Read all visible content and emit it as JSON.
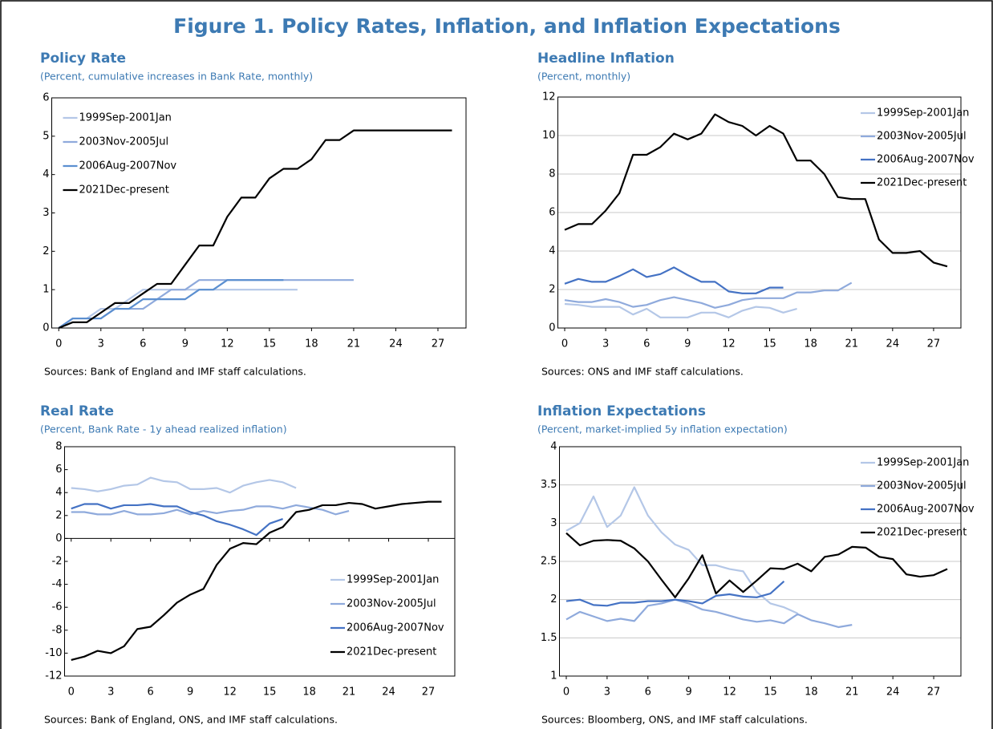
{
  "title": "Figure 1. Policy Rates, Inflation, and Inflation Expectations",
  "chart_data": [
    {
      "type": "line",
      "title": "Policy Rate",
      "subtitle": "(Percent, cumulative increases in Bank Rate, monthly)",
      "source": "Sources: Bank of England and IMF staff calculations.",
      "x": [
        0,
        1,
        2,
        3,
        4,
        5,
        6,
        7,
        8,
        9,
        10,
        11,
        12,
        13,
        14,
        15,
        16,
        17,
        18,
        19,
        20,
        21,
        22,
        23,
        24,
        25,
        26,
        27,
        28
      ],
      "xlim": [
        -0.5,
        29
      ],
      "xticks": [
        0,
        3,
        6,
        9,
        12,
        15,
        18,
        21,
        24,
        27
      ],
      "ylim": [
        0,
        6
      ],
      "yticks": [
        0,
        1,
        2,
        3,
        4,
        5,
        6
      ],
      "grid": false,
      "legend": "upper left",
      "series": [
        {
          "name": "1999Sep-2001Jan",
          "color": "#b4c7e7",
          "values": [
            0,
            0.25,
            0.25,
            0.5,
            0.5,
            0.75,
            1,
            1,
            1,
            1,
            1,
            1,
            1,
            1,
            1,
            1,
            1,
            1,
            null,
            null,
            null,
            null,
            null,
            null,
            null,
            null,
            null,
            null,
            null
          ]
        },
        {
          "name": "2003Nov-2005Jul",
          "color": "#8faadc",
          "values": [
            0,
            0.25,
            0.25,
            0.25,
            0.5,
            0.5,
            0.5,
            0.75,
            1,
            1,
            1.25,
            1.25,
            1.25,
            1.25,
            1.25,
            1.25,
            1.25,
            1.25,
            1.25,
            1.25,
            1.25,
            1.25,
            null,
            null,
            null,
            null,
            null,
            null,
            null
          ]
        },
        {
          "name": "2006Aug-2007Nov",
          "color": "#5b8fd0",
          "values": [
            0,
            0.25,
            0.25,
            0.25,
            0.5,
            0.5,
            0.75,
            0.75,
            0.75,
            0.75,
            1,
            1,
            1.25,
            1.25,
            1.25,
            1.25,
            1.25,
            null,
            null,
            null,
            null,
            null,
            null,
            null,
            null,
            null,
            null,
            null,
            null
          ]
        },
        {
          "name": "2021Dec-present",
          "color": "#000000",
          "values": [
            0,
            0.15,
            0.15,
            0.4,
            0.65,
            0.65,
            0.9,
            1.15,
            1.15,
            1.65,
            2.15,
            2.15,
            2.9,
            3.4,
            3.4,
            3.9,
            4.15,
            4.15,
            4.4,
            4.9,
            4.9,
            5.15,
            5.15,
            5.15,
            5.15,
            5.15,
            5.15,
            5.15,
            5.15
          ]
        }
      ]
    },
    {
      "type": "line",
      "title": "Headline Inflation",
      "subtitle": "(Percent, monthly)",
      "source": "Sources: ONS and IMF staff calculations.",
      "x": [
        0,
        1,
        2,
        3,
        4,
        5,
        6,
        7,
        8,
        9,
        10,
        11,
        12,
        13,
        14,
        15,
        16,
        17,
        18,
        19,
        20,
        21,
        22,
        23,
        24,
        25,
        26,
        27,
        28
      ],
      "xlim": [
        -0.5,
        29
      ],
      "xticks": [
        0,
        3,
        6,
        9,
        12,
        15,
        18,
        21,
        24,
        27
      ],
      "ylim": [
        0,
        12
      ],
      "yticks": [
        0,
        2,
        4,
        6,
        8,
        10,
        12
      ],
      "grid": true,
      "legend": "upper right",
      "series": [
        {
          "name": "1999Sep-2001Jan",
          "color": "#b4c7e7",
          "values": [
            1.25,
            1.2,
            1.1,
            1.1,
            1.1,
            0.7,
            1.0,
            0.55,
            0.55,
            0.55,
            0.8,
            0.8,
            0.55,
            0.9,
            1.1,
            1.05,
            0.8,
            1.0,
            null,
            null,
            null,
            null,
            null,
            null,
            null,
            null,
            null,
            null,
            null
          ]
        },
        {
          "name": "2003Nov-2005Jul",
          "color": "#8faadc",
          "values": [
            1.45,
            1.35,
            1.35,
            1.5,
            1.35,
            1.1,
            1.2,
            1.45,
            1.6,
            1.45,
            1.3,
            1.05,
            1.2,
            1.45,
            1.55,
            1.55,
            1.55,
            1.85,
            1.85,
            1.95,
            1.95,
            2.35,
            null,
            null,
            null,
            null,
            null,
            null,
            null
          ]
        },
        {
          "name": "2006Aug-2007Nov",
          "color": "#4472c4",
          "values": [
            2.3,
            2.55,
            2.4,
            2.4,
            2.7,
            3.05,
            2.65,
            2.8,
            3.15,
            2.75,
            2.4,
            2.4,
            1.9,
            1.8,
            1.8,
            2.1,
            2.1,
            null,
            null,
            null,
            null,
            null,
            null,
            null,
            null,
            null,
            null,
            null,
            null
          ]
        },
        {
          "name": "2021Dec-present",
          "color": "#000000",
          "values": [
            5.1,
            5.4,
            5.4,
            6.1,
            7.0,
            9.0,
            9.0,
            9.4,
            10.1,
            9.8,
            10.1,
            11.1,
            10.7,
            10.5,
            10.0,
            10.5,
            10.1,
            8.7,
            8.7,
            8.0,
            6.8,
            6.7,
            6.7,
            4.6,
            3.9,
            3.9,
            4.0,
            3.4,
            3.2
          ]
        }
      ]
    },
    {
      "type": "line",
      "title": "Real Rate",
      "subtitle": "(Percent, Bank Rate - 1y ahead realized inflation)",
      "source": "Sources: Bank of England, ONS, and IMF staff calculations.",
      "x": [
        0,
        1,
        2,
        3,
        4,
        5,
        6,
        7,
        8,
        9,
        10,
        11,
        12,
        13,
        14,
        15,
        16,
        17,
        18,
        19,
        20,
        21,
        22,
        23,
        24,
        25,
        26,
        27,
        28
      ],
      "xlim": [
        -0.5,
        29
      ],
      "xticks": [
        0,
        3,
        6,
        9,
        12,
        15,
        18,
        21,
        24,
        27
      ],
      "ylim": [
        -12,
        8
      ],
      "yticks": [
        -12,
        -10,
        -8,
        -6,
        -4,
        -2,
        0,
        2,
        4,
        6,
        8
      ],
      "grid": false,
      "legend": "lower right",
      "series": [
        {
          "name": "1999Sep-2001Jan",
          "color": "#b4c7e7",
          "values": [
            4.4,
            4.3,
            4.1,
            4.3,
            4.6,
            4.7,
            5.3,
            5.0,
            4.9,
            4.3,
            4.3,
            4.4,
            4.0,
            4.6,
            4.9,
            5.1,
            4.9,
            4.4,
            null,
            null,
            null,
            null,
            null,
            null,
            null,
            null,
            null,
            null,
            null
          ]
        },
        {
          "name": "2003Nov-2005Jul",
          "color": "#8faadc",
          "values": [
            2.3,
            2.3,
            2.1,
            2.1,
            2.4,
            2.1,
            2.1,
            2.2,
            2.5,
            2.1,
            2.4,
            2.2,
            2.4,
            2.5,
            2.8,
            2.8,
            2.6,
            2.9,
            2.7,
            2.5,
            2.1,
            2.4,
            null,
            null,
            null,
            null,
            null,
            null,
            null
          ]
        },
        {
          "name": "2006Aug-2007Nov",
          "color": "#4472c4",
          "values": [
            2.6,
            3.0,
            3.0,
            2.6,
            2.9,
            2.9,
            3.0,
            2.8,
            2.8,
            2.3,
            2.0,
            1.5,
            1.2,
            0.8,
            0.3,
            1.3,
            1.7,
            null,
            null,
            null,
            null,
            null,
            null,
            null,
            null,
            null,
            null,
            null,
            null
          ]
        },
        {
          "name": "2021Dec-present",
          "color": "#000000",
          "values": [
            -10.6,
            -10.3,
            -9.8,
            -10.0,
            -9.4,
            -7.9,
            -7.7,
            -6.7,
            -5.6,
            -4.9,
            -4.4,
            -2.3,
            -0.9,
            -0.4,
            -0.5,
            0.5,
            1.0,
            2.3,
            2.5,
            2.9,
            2.9,
            3.1,
            3.0,
            2.6,
            2.8,
            3.0,
            3.1,
            3.2,
            3.2
          ]
        }
      ]
    },
    {
      "type": "line",
      "title": "Inflation Expectations",
      "subtitle": "(Percent, market-implied 5y inflation expectation)",
      "source": "Sources: Bloomberg, ONS, and IMF staff calculations.",
      "x": [
        0,
        1,
        2,
        3,
        4,
        5,
        6,
        7,
        8,
        9,
        10,
        11,
        12,
        13,
        14,
        15,
        16,
        17,
        18,
        19,
        20,
        21,
        22,
        23,
        24,
        25,
        26,
        27,
        28
      ],
      "xlim": [
        -0.5,
        29
      ],
      "xticks": [
        0,
        3,
        6,
        9,
        12,
        15,
        18,
        21,
        24,
        27
      ],
      "ylim": [
        1,
        4
      ],
      "yticks": [
        1,
        1.5,
        2,
        2.5,
        3,
        3.5,
        4
      ],
      "grid": true,
      "legend": "upper right",
      "series": [
        {
          "name": "1999Sep-2001Jan",
          "color": "#b4c7e7",
          "values": [
            2.9,
            3.0,
            3.35,
            2.95,
            3.1,
            3.47,
            3.1,
            2.88,
            2.72,
            2.65,
            2.45,
            2.45,
            2.4,
            2.37,
            2.1,
            1.95,
            1.9,
            1.82,
            null,
            null,
            null,
            null,
            null,
            null,
            null,
            null,
            null,
            null,
            null
          ]
        },
        {
          "name": "2003Nov-2005Jul",
          "color": "#8faadc",
          "values": [
            1.74,
            1.84,
            1.78,
            1.72,
            1.75,
            1.72,
            1.92,
            1.95,
            2.0,
            1.95,
            1.87,
            1.84,
            1.79,
            1.74,
            1.71,
            1.73,
            1.69,
            1.81,
            1.73,
            1.69,
            1.64,
            1.67,
            null,
            null,
            null,
            null,
            null,
            null,
            null
          ]
        },
        {
          "name": "2006Aug-2007Nov",
          "color": "#4472c4",
          "values": [
            1.98,
            2.0,
            1.93,
            1.92,
            1.96,
            1.96,
            1.98,
            1.98,
            2.0,
            1.98,
            1.95,
            2.05,
            2.07,
            2.04,
            2.03,
            2.08,
            2.24,
            null,
            null,
            null,
            null,
            null,
            null,
            null,
            null,
            null,
            null,
            null,
            null
          ]
        },
        {
          "name": "2021Dec-present",
          "color": "#000000",
          "values": [
            2.87,
            2.71,
            2.77,
            2.78,
            2.77,
            2.67,
            2.5,
            2.26,
            2.03,
            2.28,
            2.58,
            2.08,
            2.25,
            2.1,
            2.25,
            2.41,
            2.4,
            2.47,
            2.37,
            2.56,
            2.59,
            2.69,
            2.68,
            2.56,
            2.53,
            2.33,
            2.3,
            2.32,
            2.4
          ]
        }
      ]
    }
  ]
}
